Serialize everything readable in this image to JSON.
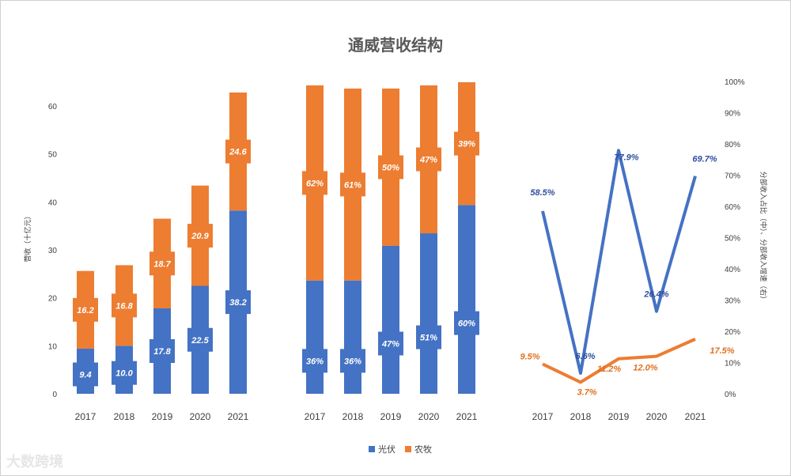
{
  "chart_data": [
    {
      "type": "bar",
      "stacked": true,
      "title": "通威营收结构",
      "ylabel": "营收（十亿元）",
      "categories": [
        "2017",
        "2018",
        "2019",
        "2020",
        "2021"
      ],
      "ylim": [
        0,
        60
      ],
      "yticks": [
        "0",
        "10",
        "20",
        "30",
        "40",
        "50",
        "60"
      ],
      "series": [
        {
          "name": "光伏",
          "values": [
            9.4,
            10.0,
            17.8,
            22.5,
            38.2
          ],
          "labels": [
            "9.4",
            "10.0",
            "17.8",
            "22.5",
            "38.2"
          ]
        },
        {
          "name": "农牧",
          "values": [
            16.2,
            16.8,
            18.7,
            20.9,
            24.6
          ],
          "labels": [
            "16.2",
            "16.8",
            "18.7",
            "20.9",
            "24.6"
          ]
        }
      ]
    },
    {
      "type": "bar",
      "stacked": true,
      "categories": [
        "2017",
        "2018",
        "2019",
        "2020",
        "2021"
      ],
      "series": [
        {
          "name": "光伏",
          "values": [
            36,
            36,
            47,
            51,
            60
          ],
          "labels": [
            "36%",
            "36%",
            "47%",
            "51%",
            "60%"
          ]
        },
        {
          "name": "农牧",
          "values": [
            62,
            61,
            50,
            47,
            39
          ],
          "labels": [
            "62%",
            "61%",
            "50%",
            "47%",
            "39%"
          ]
        }
      ]
    },
    {
      "type": "line",
      "ylabel": "分部收入占比（中）、分部收入增速（右）",
      "categories": [
        "2017",
        "2018",
        "2019",
        "2020",
        "2021"
      ],
      "ylim": [
        0,
        100
      ],
      "yticks": [
        "0%",
        "10%",
        "20%",
        "30%",
        "40%",
        "50%",
        "60%",
        "70%",
        "80%",
        "90%",
        "100%"
      ],
      "series": [
        {
          "name": "光伏",
          "values": [
            58.5,
            6.6,
            77.9,
            26.4,
            69.7
          ],
          "labels": [
            "58.5%",
            "6.6%",
            "77.9%",
            "26.4%",
            "69.7%"
          ]
        },
        {
          "name": "农牧",
          "values": [
            9.5,
            3.7,
            11.2,
            12.0,
            17.5
          ],
          "labels": [
            "9.5%",
            "3.7%",
            "11.2%",
            "12.0%",
            "17.5%"
          ]
        }
      ]
    }
  ],
  "legend": [
    {
      "name": "光伏",
      "color": "#4472c4"
    },
    {
      "name": "农牧",
      "color": "#ed7d31"
    }
  ],
  "colors": {
    "blue": "#4472c4",
    "orange": "#ed7d31"
  },
  "watermark": "大数跨境"
}
